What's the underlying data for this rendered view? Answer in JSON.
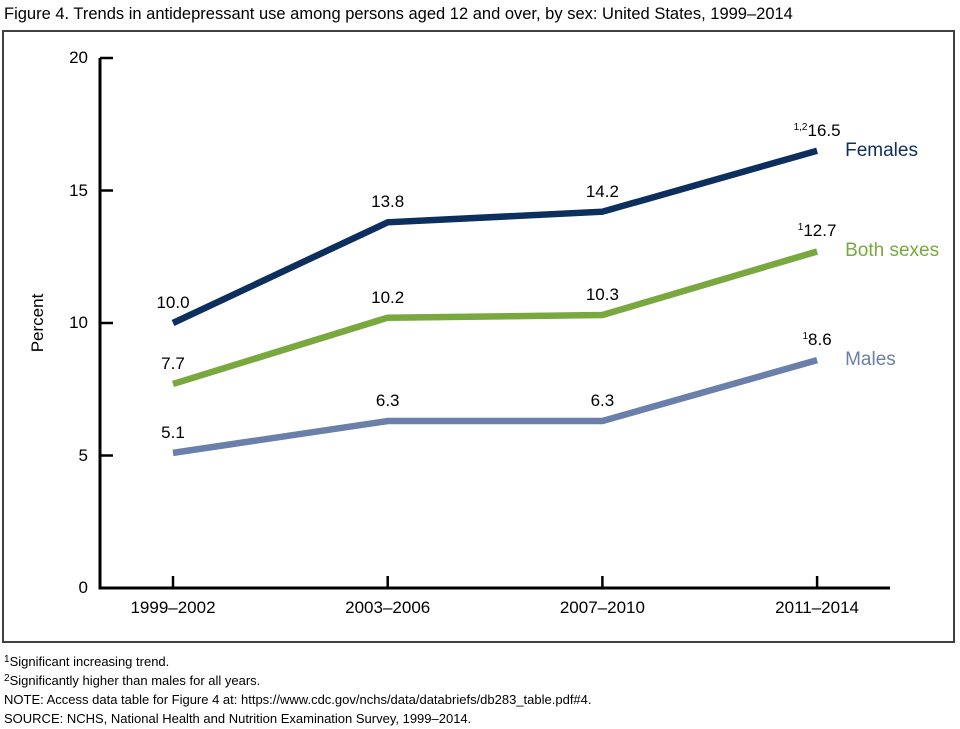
{
  "title": "Figure 4. Trends in antidepressant use among persons aged 12 and over, by sex: United States, 1999–2014",
  "chart_data": {
    "type": "line",
    "title": "Figure 4. Trends in antidepressant use among persons aged 12 and over, by sex: United States, 1999–2014",
    "categories": [
      "1999–2002",
      "2003–2006",
      "2007–2010",
      "2011–2014"
    ],
    "xlabel": "",
    "ylabel": "Percent",
    "ylim": [
      0,
      20
    ],
    "yticks": [
      0,
      5,
      10,
      15,
      20
    ],
    "grid": false,
    "legend_position": "right-of-line-end",
    "axis_color": "#000000",
    "series": [
      {
        "name": "Females",
        "color": "#0d2f5e",
        "values": [
          10.0,
          13.8,
          14.2,
          16.5
        ],
        "point_labels": [
          {
            "sup": "",
            "text": "10.0"
          },
          {
            "sup": "",
            "text": "13.8"
          },
          {
            "sup": "",
            "text": "14.2"
          },
          {
            "sup": "1,2",
            "text": "16.5"
          }
        ]
      },
      {
        "name": "Both sexes",
        "color": "#78a83e",
        "values": [
          7.7,
          10.2,
          10.3,
          12.7
        ],
        "point_labels": [
          {
            "sup": "",
            "text": "7.7"
          },
          {
            "sup": "",
            "text": "10.2"
          },
          {
            "sup": "",
            "text": "10.3"
          },
          {
            "sup": "1",
            "text": "12.7"
          }
        ]
      },
      {
        "name": "Males",
        "color": "#6a7fa9",
        "values": [
          5.1,
          6.3,
          6.3,
          8.6
        ],
        "point_labels": [
          {
            "sup": "",
            "text": "5.1"
          },
          {
            "sup": "",
            "text": "6.3"
          },
          {
            "sup": "",
            "text": "6.3"
          },
          {
            "sup": "1",
            "text": "8.6"
          }
        ]
      }
    ]
  },
  "footnotes": [
    {
      "sup": "1",
      "text": "Significant increasing trend."
    },
    {
      "sup": "2",
      "text": "Significantly higher than males for all years."
    },
    {
      "sup": "",
      "text": "NOTE: Access data table for Figure 4 at: https://www.cdc.gov/nchs/data/databriefs/db283_table.pdf#4."
    },
    {
      "sup": "",
      "text": "SOURCE: NCHS, National Health and Nutrition Examination Survey, 1999–2014."
    }
  ]
}
